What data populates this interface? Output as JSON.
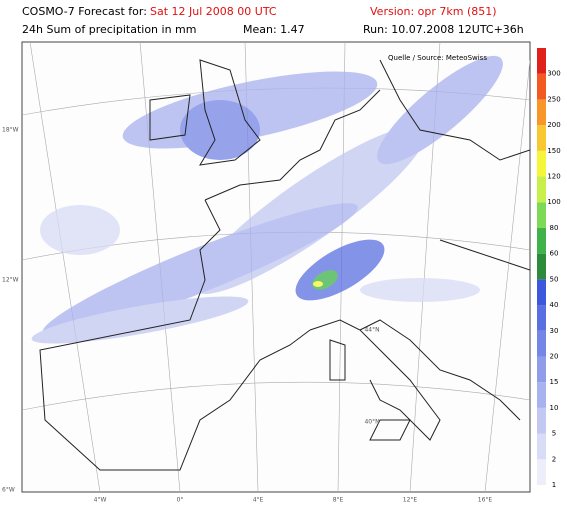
{
  "header": {
    "prefix": "COSMO-7 Forecast for:",
    "valid": "Sat 12 Jul 2008 00 UTC",
    "version": "Version: opr 7km (851)",
    "field": "24h Sum of precipitation in mm",
    "mean": "Mean: 1.47",
    "run": "Run: 10.07.2008 12UTC+36h"
  },
  "source": "Quelle / Source: MeteoSwiss",
  "colorbar": [
    {
      "label": 1,
      "color": "#eeeefa"
    },
    {
      "label": 2,
      "color": "#d8dcf6"
    },
    {
      "label": 5,
      "color": "#c2c8f2"
    },
    {
      "label": 10,
      "color": "#a8b2ee"
    },
    {
      "label": 15,
      "color": "#8e9cea"
    },
    {
      "label": 20,
      "color": "#7486e6"
    },
    {
      "label": 30,
      "color": "#5a70e2"
    },
    {
      "label": 40,
      "color": "#3d58dc"
    },
    {
      "label": 50,
      "color": "#2c8c3c"
    },
    {
      "label": 60,
      "color": "#3fb24a"
    },
    {
      "label": 80,
      "color": "#7ed957"
    },
    {
      "label": 100,
      "color": "#c8f04a"
    },
    {
      "label": 120,
      "color": "#f5f53a"
    },
    {
      "label": 150,
      "color": "#f8c832"
    },
    {
      "label": 200,
      "color": "#f8962a"
    },
    {
      "label": 250,
      "color": "#f25a22"
    },
    {
      "label": 300,
      "color": "#e0201a"
    }
  ],
  "graticule": {
    "west": [
      "18°W",
      "12°W",
      "6°W"
    ],
    "south": [
      "4°W",
      "0°",
      "4°E",
      "8°E",
      "12°E",
      "16°E"
    ],
    "north": [
      "44°N",
      "40°N"
    ]
  }
}
